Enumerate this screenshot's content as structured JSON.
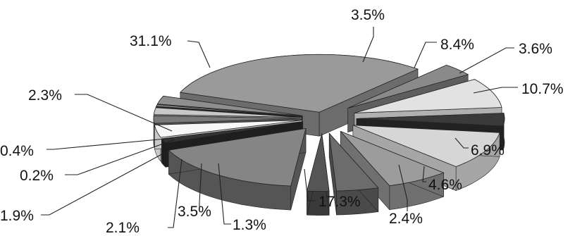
{
  "chart_data": {
    "type": "pie",
    "style": "3d-exploded",
    "title": "",
    "slices": [
      {
        "label": "31.1%",
        "value": 31.1,
        "color": "#9a9a9a",
        "side_color": "#6c6c6c"
      },
      {
        "label": "3.5%",
        "value": 3.5,
        "color": "#8a8a8a",
        "side_color": "#5e5e5e"
      },
      {
        "label": "8.4%",
        "value": 8.4,
        "color": "#e2e2e2",
        "side_color": "#b0b0b0"
      },
      {
        "label": "3.6%",
        "value": 3.6,
        "color": "#3a3a3a",
        "side_color": "#222222"
      },
      {
        "label": "10.7%",
        "value": 10.7,
        "color": "#d6d6d6",
        "side_color": "#a6a6a6"
      },
      {
        "label": "6.9%",
        "value": 6.9,
        "color": "#9c9c9c",
        "side_color": "#707070"
      },
      {
        "label": "4.6%",
        "value": 4.6,
        "color": "#6c6c6c",
        "side_color": "#4a4a4a"
      },
      {
        "label": "2.4%",
        "value": 2.4,
        "color": "#555555",
        "side_color": "#3a3a3a"
      },
      {
        "label": "17.3%",
        "value": 17.3,
        "color": "#858585",
        "side_color": "#555555"
      },
      {
        "label": "1.3%",
        "value": 1.3,
        "color": "#333333",
        "side_color": "#1e1e1e"
      },
      {
        "label": "3.5%",
        "value": 3.5,
        "color": "#f7f7f7",
        "side_color": "#c9c9c9"
      },
      {
        "label": "2.1%",
        "value": 2.1,
        "color": "#7a7a7a",
        "side_color": "#555555"
      },
      {
        "label": "1.9%",
        "value": 1.9,
        "color": "#c8c8c8",
        "side_color": "#999999"
      },
      {
        "label": "0.2%",
        "value": 0.2,
        "color": "#444444",
        "side_color": "#2a2a2a"
      },
      {
        "label": "0.4%",
        "value": 0.4,
        "color": "#aaaaaa",
        "side_color": "#7a7a7a"
      },
      {
        "label": "2.3%",
        "value": 2.3,
        "color": "#8e8e8e",
        "side_color": "#606060"
      }
    ]
  }
}
